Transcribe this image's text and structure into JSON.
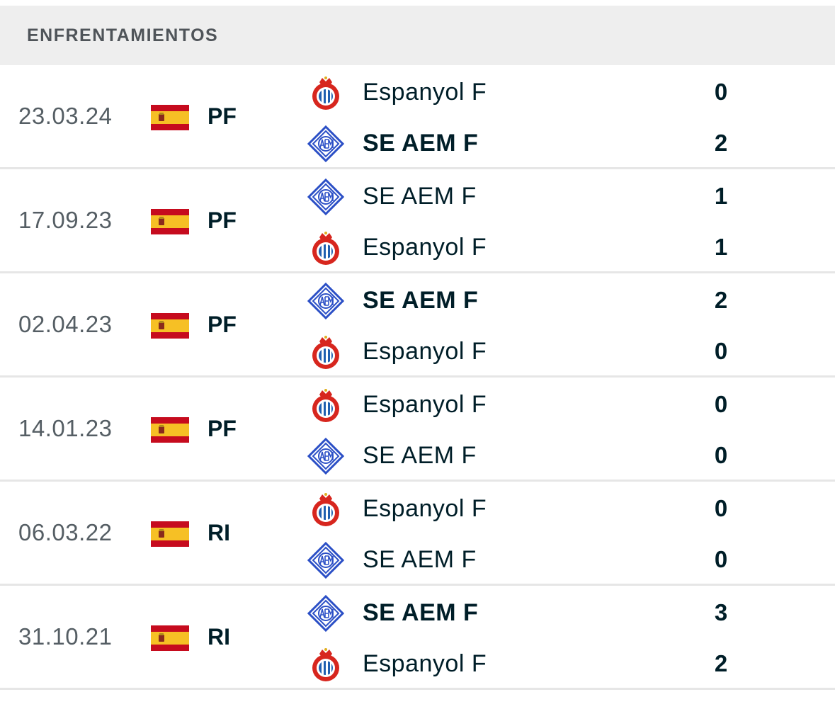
{
  "header": {
    "title": "ENFRENTAMIENTOS"
  },
  "colors": {
    "flag_red": "#c60b1e",
    "flag_yellow": "#f6c025",
    "espanyol_blue": "#1f5fb0",
    "espanyol_red": "#d7261e",
    "aem_blue": "#2b4fc6"
  },
  "matches": [
    {
      "date": "23.03.24",
      "competition": "PF",
      "flag": "spain-flag",
      "home": {
        "name": "Espanyol F",
        "logo": "espanyol-crest",
        "score": "0",
        "winner": false
      },
      "away": {
        "name": "SE AEM F",
        "logo": "aem-crest",
        "score": "2",
        "winner": true
      }
    },
    {
      "date": "17.09.23",
      "competition": "PF",
      "flag": "spain-flag",
      "home": {
        "name": "SE AEM F",
        "logo": "aem-crest",
        "score": "1",
        "winner": false
      },
      "away": {
        "name": "Espanyol F",
        "logo": "espanyol-crest",
        "score": "1",
        "winner": false
      }
    },
    {
      "date": "02.04.23",
      "competition": "PF",
      "flag": "spain-flag",
      "home": {
        "name": "SE AEM F",
        "logo": "aem-crest",
        "score": "2",
        "winner": true
      },
      "away": {
        "name": "Espanyol F",
        "logo": "espanyol-crest",
        "score": "0",
        "winner": false
      }
    },
    {
      "date": "14.01.23",
      "competition": "PF",
      "flag": "spain-flag",
      "home": {
        "name": "Espanyol F",
        "logo": "espanyol-crest",
        "score": "0",
        "winner": false
      },
      "away": {
        "name": "SE AEM F",
        "logo": "aem-crest",
        "score": "0",
        "winner": false
      }
    },
    {
      "date": "06.03.22",
      "competition": "RI",
      "flag": "spain-flag",
      "home": {
        "name": "Espanyol F",
        "logo": "espanyol-crest",
        "score": "0",
        "winner": false
      },
      "away": {
        "name": "SE AEM F",
        "logo": "aem-crest",
        "score": "0",
        "winner": false
      }
    },
    {
      "date": "31.10.21",
      "competition": "RI",
      "flag": "spain-flag",
      "home": {
        "name": "SE AEM F",
        "logo": "aem-crest",
        "score": "3",
        "winner": true
      },
      "away": {
        "name": "Espanyol F",
        "logo": "espanyol-crest",
        "score": "2",
        "winner": false
      }
    }
  ]
}
